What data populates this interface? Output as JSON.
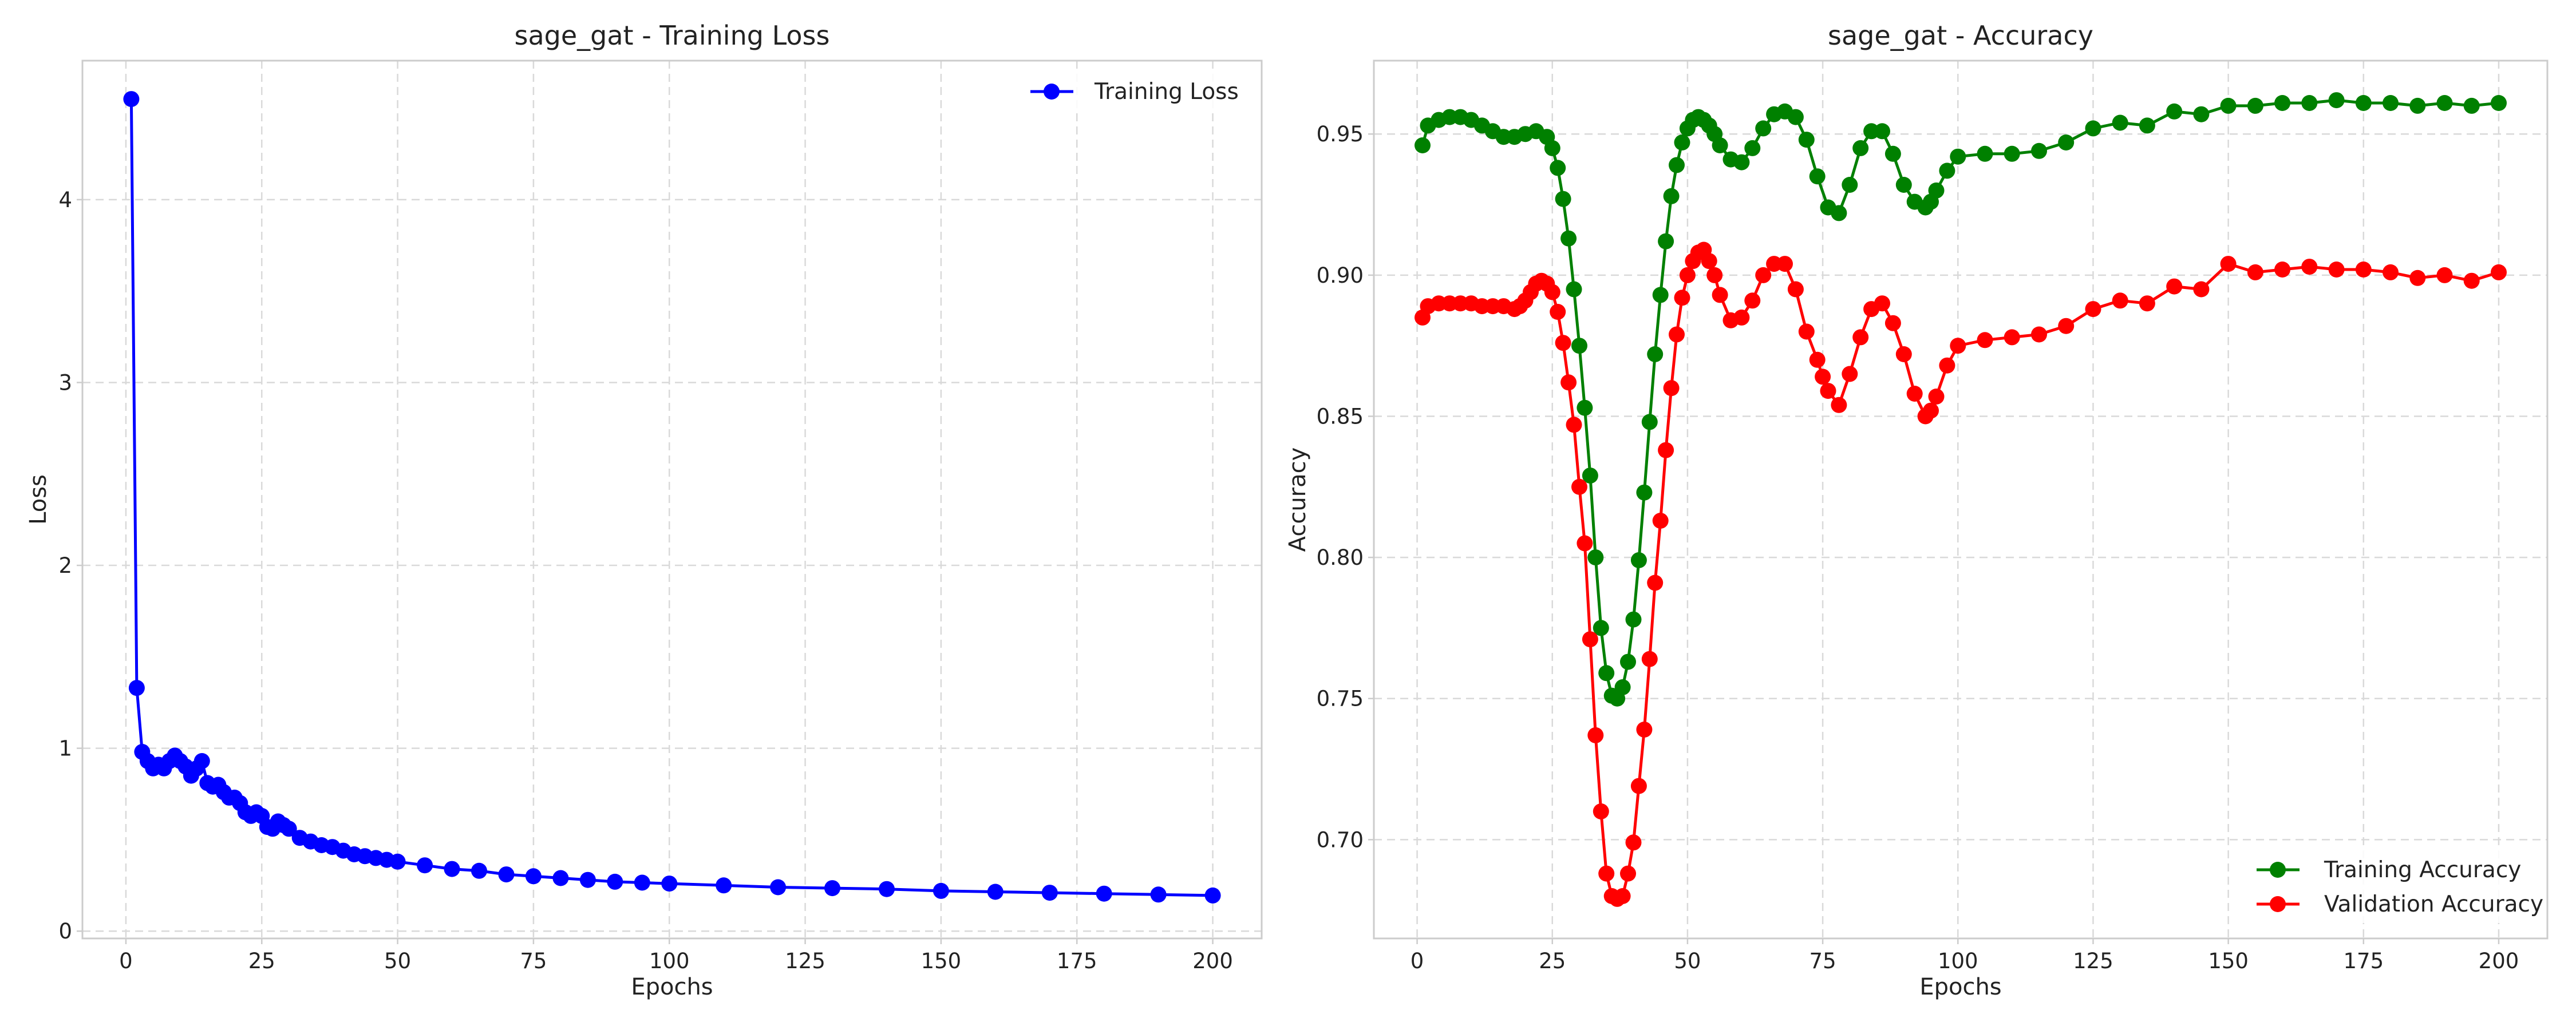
{
  "chart_data": [
    {
      "type": "line",
      "title": "sage_gat - Training Loss",
      "xlabel": "Epochs",
      "ylabel": "Loss",
      "xlim": [
        -8,
        209
      ],
      "ylim": [
        -0.04,
        4.76
      ],
      "xticks": [
        0,
        25,
        50,
        75,
        100,
        125,
        150,
        175,
        200
      ],
      "yticks": [
        0,
        1,
        2,
        3,
        4
      ],
      "grid": true,
      "legend_position": "upper right",
      "series": [
        {
          "name": "Training Loss",
          "color": "#0000ff",
          "marker": "circle",
          "x": [
            1,
            2,
            3,
            4,
            5,
            6,
            7,
            8,
            9,
            10,
            11,
            12,
            13,
            14,
            15,
            16,
            17,
            18,
            19,
            20,
            21,
            22,
            23,
            24,
            25,
            26,
            27,
            28,
            29,
            30,
            32,
            34,
            36,
            38,
            40,
            42,
            44,
            46,
            48,
            50,
            55,
            60,
            65,
            70,
            75,
            80,
            85,
            90,
            95,
            100,
            110,
            120,
            130,
            140,
            150,
            160,
            170,
            180,
            190,
            200
          ],
          "y": [
            4.55,
            1.33,
            0.98,
            0.93,
            0.89,
            0.91,
            0.89,
            0.93,
            0.96,
            0.93,
            0.9,
            0.85,
            0.89,
            0.93,
            0.81,
            0.79,
            0.8,
            0.76,
            0.73,
            0.73,
            0.7,
            0.65,
            0.63,
            0.65,
            0.63,
            0.57,
            0.56,
            0.6,
            0.58,
            0.56,
            0.51,
            0.49,
            0.47,
            0.46,
            0.44,
            0.42,
            0.41,
            0.4,
            0.39,
            0.38,
            0.36,
            0.34,
            0.33,
            0.31,
            0.3,
            0.29,
            0.28,
            0.27,
            0.265,
            0.26,
            0.25,
            0.24,
            0.235,
            0.23,
            0.22,
            0.215,
            0.21,
            0.205,
            0.2,
            0.195
          ]
        }
      ]
    },
    {
      "type": "line",
      "title": "sage_gat - Accuracy",
      "xlabel": "Epochs",
      "ylabel": "Accuracy",
      "xlim": [
        -8,
        209
      ],
      "ylim": [
        0.665,
        0.976
      ],
      "xticks": [
        0,
        25,
        50,
        75,
        100,
        125,
        150,
        175,
        200
      ],
      "yticks": [
        0.7,
        0.75,
        0.8,
        0.85,
        0.9,
        0.95
      ],
      "grid": true,
      "legend_position": "lower right",
      "series": [
        {
          "name": "Training Accuracy",
          "color": "#008000",
          "marker": "circle",
          "x": [
            1,
            2,
            4,
            6,
            8,
            10,
            12,
            14,
            16,
            18,
            20,
            22,
            24,
            25,
            26,
            27,
            28,
            29,
            30,
            31,
            32,
            33,
            34,
            35,
            36,
            37,
            38,
            39,
            40,
            41,
            42,
            43,
            44,
            45,
            46,
            47,
            48,
            49,
            50,
            51,
            52,
            53,
            54,
            55,
            56,
            58,
            60,
            62,
            64,
            66,
            68,
            70,
            72,
            74,
            76,
            78,
            80,
            82,
            84,
            86,
            88,
            90,
            92,
            94,
            95,
            96,
            98,
            100,
            105,
            110,
            115,
            120,
            125,
            130,
            135,
            140,
            145,
            150,
            155,
            160,
            165,
            170,
            175,
            180,
            185,
            190,
            195,
            200
          ],
          "y": [
            0.946,
            0.953,
            0.955,
            0.956,
            0.956,
            0.955,
            0.953,
            0.951,
            0.949,
            0.949,
            0.95,
            0.951,
            0.949,
            0.945,
            0.938,
            0.927,
            0.913,
            0.895,
            0.875,
            0.853,
            0.829,
            0.8,
            0.775,
            0.759,
            0.751,
            0.75,
            0.754,
            0.763,
            0.778,
            0.799,
            0.823,
            0.848,
            0.872,
            0.893,
            0.912,
            0.928,
            0.939,
            0.947,
            0.952,
            0.955,
            0.956,
            0.955,
            0.953,
            0.95,
            0.946,
            0.941,
            0.94,
            0.945,
            0.952,
            0.957,
            0.958,
            0.956,
            0.948,
            0.935,
            0.924,
            0.922,
            0.932,
            0.945,
            0.951,
            0.951,
            0.943,
            0.932,
            0.926,
            0.924,
            0.926,
            0.93,
            0.937,
            0.942,
            0.943,
            0.943,
            0.944,
            0.947,
            0.952,
            0.954,
            0.953,
            0.958,
            0.957,
            0.96,
            0.96,
            0.961,
            0.961,
            0.962,
            0.961,
            0.961,
            0.96,
            0.961,
            0.96,
            0.961
          ]
        },
        {
          "name": "Validation Accuracy",
          "color": "#ff0000",
          "marker": "circle",
          "x": [
            1,
            2,
            4,
            6,
            8,
            10,
            12,
            14,
            16,
            18,
            19,
            20,
            21,
            22,
            23,
            24,
            25,
            26,
            27,
            28,
            29,
            30,
            31,
            32,
            33,
            34,
            35,
            36,
            37,
            38,
            39,
            40,
            41,
            42,
            43,
            44,
            45,
            46,
            47,
            48,
            49,
            50,
            51,
            52,
            53,
            54,
            55,
            56,
            58,
            60,
            62,
            64,
            66,
            68,
            70,
            72,
            74,
            75,
            76,
            78,
            80,
            82,
            84,
            86,
            88,
            90,
            92,
            94,
            95,
            96,
            98,
            100,
            105,
            110,
            115,
            120,
            125,
            130,
            135,
            140,
            145,
            150,
            155,
            160,
            165,
            170,
            175,
            180,
            185,
            190,
            195,
            200
          ],
          "y": [
            0.885,
            0.889,
            0.89,
            0.89,
            0.89,
            0.89,
            0.889,
            0.889,
            0.889,
            0.888,
            0.889,
            0.891,
            0.894,
            0.897,
            0.898,
            0.897,
            0.894,
            0.887,
            0.876,
            0.862,
            0.847,
            0.825,
            0.805,
            0.771,
            0.737,
            0.71,
            0.688,
            0.68,
            0.679,
            0.68,
            0.688,
            0.699,
            0.719,
            0.739,
            0.764,
            0.791,
            0.813,
            0.838,
            0.86,
            0.879,
            0.892,
            0.9,
            0.905,
            0.908,
            0.909,
            0.905,
            0.9,
            0.893,
            0.884,
            0.885,
            0.891,
            0.9,
            0.904,
            0.904,
            0.895,
            0.88,
            0.87,
            0.864,
            0.859,
            0.854,
            0.865,
            0.878,
            0.888,
            0.89,
            0.883,
            0.872,
            0.858,
            0.85,
            0.852,
            0.857,
            0.868,
            0.875,
            0.877,
            0.878,
            0.879,
            0.882,
            0.888,
            0.891,
            0.89,
            0.896,
            0.895,
            0.904,
            0.901,
            0.902,
            0.903,
            0.902,
            0.902,
            0.901,
            0.899,
            0.9,
            0.898,
            0.901
          ]
        }
      ]
    }
  ]
}
